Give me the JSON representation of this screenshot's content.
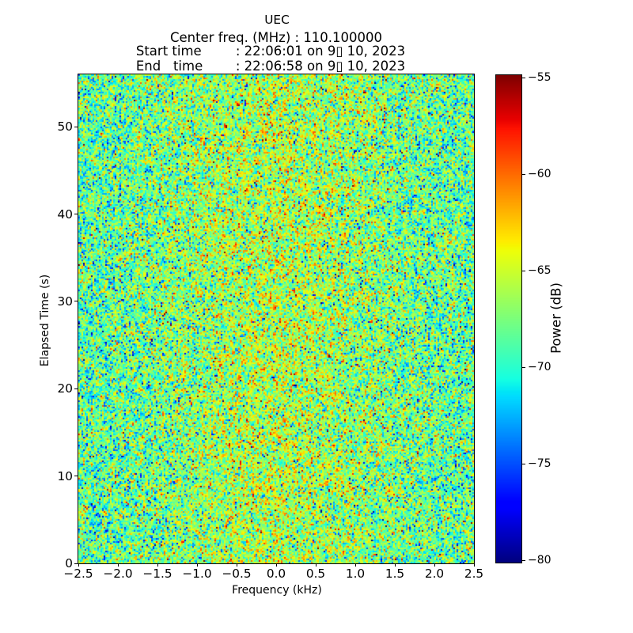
{
  "header": {
    "title": "UEC",
    "center_freq_line": "Center freq. (MHz) : 110.100000",
    "start_label": "Start time",
    "start_value": ": 22:06:01 on 9▯ 10, 2023",
    "end_label": "End   time",
    "end_value": ": 22:06:58 on 9▯ 10, 2023"
  },
  "chart_data": {
    "type": "heatmap",
    "title": "UEC",
    "xlabel": "Frequency (kHz)",
    "ylabel": "Elapsed Time (s)",
    "xlim": [
      -2.5,
      2.5
    ],
    "ylim": [
      0,
      56
    ],
    "x_ticks": [
      -2.5,
      -2.0,
      -1.5,
      -1.0,
      -0.5,
      0.0,
      0.5,
      1.0,
      1.5,
      2.0,
      2.5
    ],
    "x_tick_labels": [
      "−2.5",
      "−2.0",
      "−1.5",
      "−1.0",
      "−0.5",
      "0.0",
      "0.5",
      "1.0",
      "1.5",
      "2.0",
      "2.5"
    ],
    "y_ticks": [
      0,
      10,
      20,
      30,
      40,
      50
    ],
    "y_tick_labels": [
      "0",
      "10",
      "20",
      "30",
      "40",
      "50"
    ],
    "grid": false,
    "colorbar": {
      "label": "Power (dB)",
      "ticks": [
        -55,
        -60,
        -65,
        -70,
        -75,
        -80
      ],
      "tick_labels": [
        "−55",
        "−60",
        "−65",
        "−70",
        "−75",
        "−80"
      ],
      "vmin": -80.12,
      "vmax": -54.86,
      "colormap": "jet"
    },
    "values_model": {
      "description": "random noise spectrogram, power in dB vs frequency and elapsed time",
      "seed": 987654321,
      "cols": 250,
      "rows": 309,
      "mean_db": -68.7,
      "std_db": 3.3,
      "vertical_corr": 0.25,
      "center_boost_db": 2.7,
      "center_sigma_khz": 1.15,
      "hot_speck_prob": 0.009,
      "cold_speck_prob": 0.021
    }
  }
}
